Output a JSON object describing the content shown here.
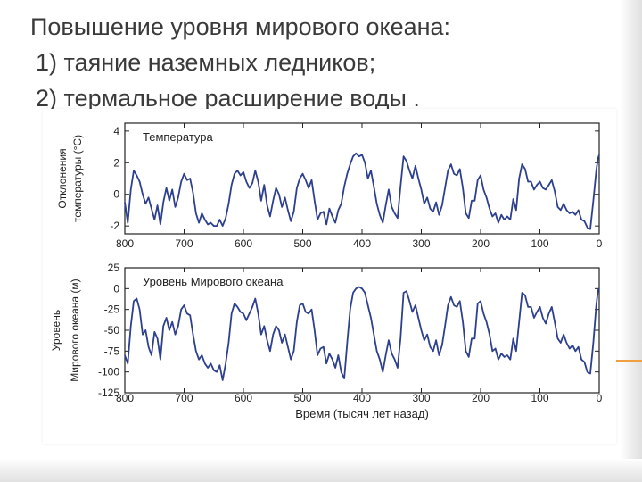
{
  "slide": {
    "title_lines": [
      "Повышение уровня мирового океана:",
      "1) таяние наземных ледников;",
      "2) термальное расширение воды ."
    ]
  },
  "chart_data": [
    {
      "type": "line",
      "title": "Температура",
      "ylabel_lines": [
        "Отклонения",
        "температуры (°C)"
      ],
      "xlabel": "",
      "xlim": [
        800,
        0
      ],
      "ylim": [
        -2.5,
        4.5
      ],
      "x_ticks": [
        "800",
        "700",
        "600",
        "500",
        "400",
        "300",
        "200",
        "100",
        "0"
      ],
      "y_ticks": [
        "4",
        "2",
        "0",
        "-2"
      ],
      "y_tick_values": [
        4,
        2,
        0,
        -2
      ],
      "color": "#2d3f8f",
      "points": [
        [
          800,
          -0.5
        ],
        [
          795,
          -1.8
        ],
        [
          790,
          0.3
        ],
        [
          785,
          1.5
        ],
        [
          780,
          1.2
        ],
        [
          775,
          0.8
        ],
        [
          770,
          0.0
        ],
        [
          765,
          -0.6
        ],
        [
          760,
          -0.2
        ],
        [
          755,
          -0.9
        ],
        [
          750,
          -1.6
        ],
        [
          745,
          -0.7
        ],
        [
          740,
          -1.9
        ],
        [
          735,
          -0.5
        ],
        [
          730,
          0.4
        ],
        [
          725,
          -0.4
        ],
        [
          720,
          0.3
        ],
        [
          715,
          -0.8
        ],
        [
          710,
          -0.2
        ],
        [
          705,
          0.8
        ],
        [
          700,
          1.3
        ],
        [
          695,
          0.9
        ],
        [
          690,
          1.0
        ],
        [
          685,
          0.1
        ],
        [
          680,
          -1.2
        ],
        [
          675,
          -1.8
        ],
        [
          670,
          -1.2
        ],
        [
          665,
          -1.6
        ],
        [
          660,
          -1.9
        ],
        [
          655,
          -1.8
        ],
        [
          650,
          -2.0
        ],
        [
          645,
          -2.0
        ],
        [
          640,
          -1.6
        ],
        [
          635,
          -2.0
        ],
        [
          630,
          -1.5
        ],
        [
          625,
          -0.6
        ],
        [
          620,
          0.6
        ],
        [
          615,
          1.3
        ],
        [
          610,
          1.5
        ],
        [
          605,
          1.2
        ],
        [
          600,
          1.4
        ],
        [
          595,
          0.8
        ],
        [
          590,
          0.4
        ],
        [
          585,
          0.7
        ],
        [
          580,
          1.5
        ],
        [
          575,
          0.8
        ],
        [
          570,
          -0.4
        ],
        [
          565,
          0.6
        ],
        [
          560,
          -0.7
        ],
        [
          555,
          -1.4
        ],
        [
          550,
          -0.4
        ],
        [
          545,
          0.4
        ],
        [
          540,
          0.0
        ],
        [
          535,
          -0.8
        ],
        [
          530,
          -0.2
        ],
        [
          525,
          -1.0
        ],
        [
          520,
          -1.7
        ],
        [
          515,
          -1.1
        ],
        [
          510,
          0.4
        ],
        [
          505,
          1.0
        ],
        [
          500,
          1.3
        ],
        [
          495,
          0.9
        ],
        [
          490,
          0.4
        ],
        [
          485,
          0.9
        ],
        [
          480,
          -0.4
        ],
        [
          475,
          -1.6
        ],
        [
          470,
          -1.2
        ],
        [
          465,
          -1.1
        ],
        [
          460,
          -1.9
        ],
        [
          455,
          -0.9
        ],
        [
          450,
          -1.4
        ],
        [
          445,
          -1.8
        ],
        [
          440,
          -1.0
        ],
        [
          435,
          -0.6
        ],
        [
          430,
          0.5
        ],
        [
          425,
          1.3
        ],
        [
          420,
          1.9
        ],
        [
          415,
          2.4
        ],
        [
          410,
          2.6
        ],
        [
          405,
          2.4
        ],
        [
          400,
          2.5
        ],
        [
          395,
          2.0
        ],
        [
          390,
          1.0
        ],
        [
          385,
          1.5
        ],
        [
          380,
          0.5
        ],
        [
          375,
          -0.6
        ],
        [
          370,
          -1.3
        ],
        [
          365,
          -1.8
        ],
        [
          360,
          -0.7
        ],
        [
          355,
          0.3
        ],
        [
          350,
          -0.8
        ],
        [
          345,
          -1.2
        ],
        [
          340,
          -1.5
        ],
        [
          335,
          0.5
        ],
        [
          330,
          2.4
        ],
        [
          325,
          2.1
        ],
        [
          320,
          1.5
        ],
        [
          315,
          1.0
        ],
        [
          310,
          1.8
        ],
        [
          305,
          1.0
        ],
        [
          300,
          0.3
        ],
        [
          295,
          -0.6
        ],
        [
          290,
          -0.2
        ],
        [
          285,
          -0.9
        ],
        [
          280,
          -1.1
        ],
        [
          275,
          -0.5
        ],
        [
          270,
          -1.3
        ],
        [
          265,
          -0.7
        ],
        [
          260,
          0.4
        ],
        [
          255,
          1.5
        ],
        [
          250,
          1.9
        ],
        [
          245,
          1.3
        ],
        [
          240,
          1.2
        ],
        [
          235,
          1.6
        ],
        [
          230,
          0.4
        ],
        [
          225,
          -1.2
        ],
        [
          220,
          -1.5
        ],
        [
          215,
          -0.4
        ],
        [
          210,
          -0.4
        ],
        [
          205,
          0.9
        ],
        [
          200,
          1.2
        ],
        [
          195,
          0.3
        ],
        [
          190,
          -0.2
        ],
        [
          185,
          -0.9
        ],
        [
          180,
          -1.4
        ],
        [
          175,
          -1.2
        ],
        [
          170,
          -1.8
        ],
        [
          165,
          -1.3
        ],
        [
          160,
          -1.6
        ],
        [
          155,
          -1.4
        ],
        [
          150,
          -1.6
        ],
        [
          145,
          -0.3
        ],
        [
          140,
          -1.0
        ],
        [
          135,
          1.0
        ],
        [
          130,
          1.9
        ],
        [
          125,
          1.6
        ],
        [
          120,
          0.8
        ],
        [
          115,
          0.8
        ],
        [
          110,
          0.3
        ],
        [
          105,
          0.6
        ],
        [
          100,
          0.8
        ],
        [
          95,
          0.4
        ],
        [
          90,
          0.3
        ],
        [
          85,
          0.6
        ],
        [
          80,
          0.9
        ],
        [
          75,
          0.2
        ],
        [
          70,
          -0.8
        ],
        [
          65,
          -1.0
        ],
        [
          60,
          -0.6
        ],
        [
          55,
          -1.0
        ],
        [
          50,
          -1.2
        ],
        [
          45,
          -1.1
        ],
        [
          40,
          -1.3
        ],
        [
          35,
          -1.0
        ],
        [
          30,
          -1.6
        ],
        [
          25,
          -1.7
        ],
        [
          20,
          -2.1
        ],
        [
          15,
          -2.2
        ],
        [
          10,
          -0.4
        ],
        [
          5,
          1.5
        ],
        [
          2,
          2.3
        ],
        [
          0,
          2.5
        ]
      ]
    },
    {
      "type": "line",
      "title": "Уровень Мирового океана",
      "ylabel_lines": [
        "Уровень",
        "Мирового океана (м)"
      ],
      "xlabel": "Время (тысяч лет назад)",
      "xlim": [
        800,
        0
      ],
      "ylim": [
        -125,
        25
      ],
      "x_ticks": [
        "800",
        "700",
        "600",
        "500",
        "400",
        "300",
        "200",
        "100",
        "0"
      ],
      "y_ticks": [
        "25",
        "0",
        "-25",
        "-50",
        "-75",
        "-100",
        "-125"
      ],
      "y_tick_values": [
        25,
        0,
        -25,
        -50,
        -75,
        -100,
        -125
      ],
      "color": "#2d3f8f",
      "points": [
        [
          800,
          -80
        ],
        [
          795,
          -90
        ],
        [
          790,
          -45
        ],
        [
          785,
          -15
        ],
        [
          780,
          -12
        ],
        [
          775,
          -25
        ],
        [
          770,
          -55
        ],
        [
          765,
          -50
        ],
        [
          760,
          -70
        ],
        [
          755,
          -80
        ],
        [
          750,
          -52
        ],
        [
          745,
          -60
        ],
        [
          740,
          -85
        ],
        [
          735,
          -45
        ],
        [
          730,
          -35
        ],
        [
          725,
          -50
        ],
        [
          720,
          -40
        ],
        [
          715,
          -55
        ],
        [
          710,
          -45
        ],
        [
          705,
          -25
        ],
        [
          700,
          -20
        ],
        [
          695,
          -30
        ],
        [
          690,
          -32
        ],
        [
          685,
          -55
        ],
        [
          680,
          -75
        ],
        [
          675,
          -85
        ],
        [
          670,
          -80
        ],
        [
          665,
          -90
        ],
        [
          660,
          -95
        ],
        [
          655,
          -90
        ],
        [
          650,
          -98
        ],
        [
          645,
          -100
        ],
        [
          640,
          -92
        ],
        [
          635,
          -110
        ],
        [
          630,
          -90
        ],
        [
          625,
          -65
        ],
        [
          620,
          -30
        ],
        [
          615,
          -18
        ],
        [
          610,
          -22
        ],
        [
          605,
          -28
        ],
        [
          600,
          -30
        ],
        [
          595,
          -38
        ],
        [
          590,
          -30
        ],
        [
          585,
          -22
        ],
        [
          580,
          -12
        ],
        [
          575,
          -30
        ],
        [
          570,
          -55
        ],
        [
          565,
          -45
        ],
        [
          560,
          -62
        ],
        [
          555,
          -75
        ],
        [
          550,
          -55
        ],
        [
          545,
          -45
        ],
        [
          540,
          -50
        ],
        [
          535,
          -65
        ],
        [
          530,
          -55
        ],
        [
          525,
          -70
        ],
        [
          520,
          -85
        ],
        [
          515,
          -75
        ],
        [
          510,
          -40
        ],
        [
          505,
          -20
        ],
        [
          500,
          -18
        ],
        [
          495,
          -28
        ],
        [
          490,
          -30
        ],
        [
          485,
          -25
        ],
        [
          480,
          -50
        ],
        [
          475,
          -80
        ],
        [
          470,
          -72
        ],
        [
          465,
          -70
        ],
        [
          460,
          -90
        ],
        [
          455,
          -78
        ],
        [
          450,
          -85
        ],
        [
          445,
          -95
        ],
        [
          440,
          -80
        ],
        [
          435,
          -100
        ],
        [
          430,
          -108
        ],
        [
          425,
          -65
        ],
        [
          420,
          -25
        ],
        [
          415,
          -5
        ],
        [
          410,
          0
        ],
        [
          405,
          2
        ],
        [
          400,
          0
        ],
        [
          395,
          -5
        ],
        [
          390,
          -20
        ],
        [
          385,
          -35
        ],
        [
          380,
          -55
        ],
        [
          375,
          -75
        ],
        [
          370,
          -85
        ],
        [
          365,
          -100
        ],
        [
          360,
          -80
        ],
        [
          355,
          -62
        ],
        [
          350,
          -78
        ],
        [
          345,
          -85
        ],
        [
          340,
          -95
        ],
        [
          335,
          -60
        ],
        [
          330,
          -5
        ],
        [
          325,
          -3
        ],
        [
          320,
          -15
        ],
        [
          315,
          -28
        ],
        [
          310,
          -20
        ],
        [
          305,
          -35
        ],
        [
          300,
          -50
        ],
        [
          295,
          -62
        ],
        [
          290,
          -55
        ],
        [
          285,
          -70
        ],
        [
          280,
          -75
        ],
        [
          275,
          -62
        ],
        [
          270,
          -80
        ],
        [
          265,
          -68
        ],
        [
          260,
          -45
        ],
        [
          255,
          -20
        ],
        [
          250,
          -10
        ],
        [
          245,
          -20
        ],
        [
          240,
          -22
        ],
        [
          235,
          -15
        ],
        [
          230,
          -40
        ],
        [
          225,
          -75
        ],
        [
          220,
          -82
        ],
        [
          215,
          -60
        ],
        [
          210,
          -60
        ],
        [
          205,
          -18
        ],
        [
          200,
          -15
        ],
        [
          195,
          -30
        ],
        [
          190,
          -40
        ],
        [
          185,
          -55
        ],
        [
          180,
          -75
        ],
        [
          175,
          -72
        ],
        [
          170,
          -85
        ],
        [
          165,
          -78
        ],
        [
          160,
          -82
        ],
        [
          155,
          -80
        ],
        [
          150,
          -85
        ],
        [
          145,
          -60
        ],
        [
          140,
          -75
        ],
        [
          135,
          -40
        ],
        [
          130,
          -5
        ],
        [
          125,
          -8
        ],
        [
          120,
          -22
        ],
        [
          115,
          -22
        ],
        [
          110,
          -35
        ],
        [
          105,
          -28
        ],
        [
          100,
          -22
        ],
        [
          95,
          -35
        ],
        [
          90,
          -42
        ],
        [
          85,
          -30
        ],
        [
          80,
          -22
        ],
        [
          75,
          -40
        ],
        [
          70,
          -60
        ],
        [
          65,
          -65
        ],
        [
          60,
          -55
        ],
        [
          55,
          -65
        ],
        [
          50,
          -72
        ],
        [
          45,
          -68
        ],
        [
          40,
          -75
        ],
        [
          35,
          -70
        ],
        [
          30,
          -85
        ],
        [
          25,
          -88
        ],
        [
          20,
          -100
        ],
        [
          15,
          -102
        ],
        [
          10,
          -65
        ],
        [
          5,
          -20
        ],
        [
          2,
          -2
        ],
        [
          0,
          0
        ]
      ]
    }
  ]
}
